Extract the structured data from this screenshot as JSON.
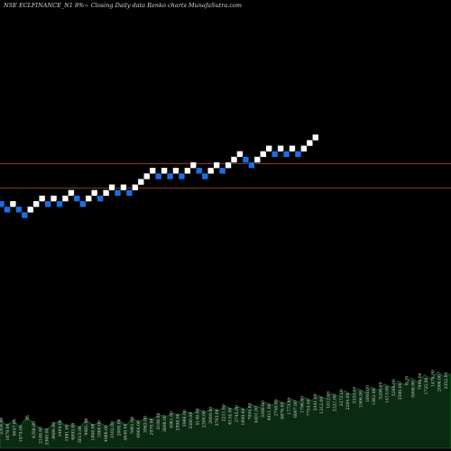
{
  "chart_data": {
    "type": "renko",
    "title": "NSE ECLFINANCE_N1 8%~ Closing Daily data Renko charts MunafaSutra.com",
    "colors": {
      "background": "#000000",
      "up_brick": "#ffffff",
      "down_brick": "#1a6fe0",
      "reference_line": "#b34a1e",
      "volume_fill": "#0b2a12",
      "volume_outline": "#1f7a2e"
    },
    "bricks": [
      {
        "dir": "down",
        "level": 14
      },
      {
        "dir": "down",
        "level": 13
      },
      {
        "dir": "up",
        "level": 14
      },
      {
        "dir": "down",
        "level": 13
      },
      {
        "dir": "down",
        "level": 12
      },
      {
        "dir": "up",
        "level": 13
      },
      {
        "dir": "up",
        "level": 14
      },
      {
        "dir": "up",
        "level": 15
      },
      {
        "dir": "down",
        "level": 14
      },
      {
        "dir": "up",
        "level": 15
      },
      {
        "dir": "down",
        "level": 14
      },
      {
        "dir": "up",
        "level": 15
      },
      {
        "dir": "up",
        "level": 16
      },
      {
        "dir": "down",
        "level": 15
      },
      {
        "dir": "down",
        "level": 14
      },
      {
        "dir": "up",
        "level": 15
      },
      {
        "dir": "up",
        "level": 16
      },
      {
        "dir": "down",
        "level": 15
      },
      {
        "dir": "up",
        "level": 16
      },
      {
        "dir": "up",
        "level": 17
      },
      {
        "dir": "down",
        "level": 16
      },
      {
        "dir": "up",
        "level": 17
      },
      {
        "dir": "down",
        "level": 16
      },
      {
        "dir": "up",
        "level": 17
      },
      {
        "dir": "up",
        "level": 18
      },
      {
        "dir": "up",
        "level": 19
      },
      {
        "dir": "up",
        "level": 20
      },
      {
        "dir": "down",
        "level": 19
      },
      {
        "dir": "up",
        "level": 20
      },
      {
        "dir": "down",
        "level": 19
      },
      {
        "dir": "up",
        "level": 20
      },
      {
        "dir": "down",
        "level": 19
      },
      {
        "dir": "up",
        "level": 20
      },
      {
        "dir": "up",
        "level": 21
      },
      {
        "dir": "down",
        "level": 20
      },
      {
        "dir": "down",
        "level": 19
      },
      {
        "dir": "up",
        "level": 20
      },
      {
        "dir": "up",
        "level": 21
      },
      {
        "dir": "down",
        "level": 20
      },
      {
        "dir": "up",
        "level": 21
      },
      {
        "dir": "up",
        "level": 22
      },
      {
        "dir": "up",
        "level": 23
      },
      {
        "dir": "down",
        "level": 22
      },
      {
        "dir": "down",
        "level": 21
      },
      {
        "dir": "up",
        "level": 22
      },
      {
        "dir": "up",
        "level": 23
      },
      {
        "dir": "up",
        "level": 24
      },
      {
        "dir": "down",
        "level": 23
      },
      {
        "dir": "up",
        "level": 24
      },
      {
        "dir": "down",
        "level": 23
      },
      {
        "dir": "up",
        "level": 24
      },
      {
        "dir": "down",
        "level": 23
      },
      {
        "dir": "up",
        "level": 24
      },
      {
        "dir": "up",
        "level": 25
      },
      {
        "dir": "up",
        "level": 26
      }
    ],
    "reference_lines": [
      21.3,
      16.9
    ],
    "volume_labels": [
      "2354.00",
      "1679.00",
      "9047.00",
      "1979.00",
      "95",
      "4358.00",
      "2146.00",
      "3360.00",
      "8686.00",
      "2404.00",
      "1981.00",
      "6893.00",
      "5013.00",
      "9981.00",
      "1808.00",
      "1860.00",
      "4986.00",
      "3102.00",
      "2000.00",
      "4640.00",
      "5901.00",
      "6004.00",
      "3963.00",
      "2970.00",
      "3108.00",
      "3806.00",
      "4961.00",
      "2998.00",
      "3966.00",
      "3380.00",
      "5140.00",
      "2200.00",
      "2009.00",
      "3703.00",
      "2211.00",
      "6134.00",
      "2745.00",
      "1899.00",
      "7094.00",
      "4401.00",
      "3390.00",
      "4911.00",
      "2740.00",
      "8876.00",
      "1773.00",
      "6007.00",
      "1796.00",
      "7754.00",
      "2441.00",
      "1312.00",
      "1012.00",
      "2221.00",
      "2272.00",
      "2204.00",
      "3333.00",
      "1906.00",
      "1893.00",
      "1362.00",
      "5206.00",
      "1413.00",
      "5200.00",
      "3590.00",
      "6.20",
      "5906.00",
      "7000.00",
      "1725.00",
      "1478.00",
      "2006.00",
      "3352.00"
    ],
    "volume_values": [
      0.38,
      0.3,
      0.36,
      0.28,
      0.41,
      0.33,
      0.26,
      0.24,
      0.32,
      0.35,
      0.29,
      0.31,
      0.27,
      0.37,
      0.3,
      0.34,
      0.28,
      0.33,
      0.36,
      0.3,
      0.39,
      0.34,
      0.4,
      0.37,
      0.44,
      0.41,
      0.46,
      0.43,
      0.48,
      0.45,
      0.5,
      0.47,
      0.52,
      0.49,
      0.55,
      0.51,
      0.54,
      0.5,
      0.57,
      0.53,
      0.6,
      0.56,
      0.62,
      0.58,
      0.64,
      0.6,
      0.66,
      0.62,
      0.69,
      0.65,
      0.72,
      0.68,
      0.75,
      0.7,
      0.78,
      0.73,
      0.8,
      0.76,
      0.84,
      0.79,
      0.88,
      0.83,
      0.92,
      0.86,
      0.96,
      0.9,
      1.0,
      0.94,
      0.97
    ]
  }
}
